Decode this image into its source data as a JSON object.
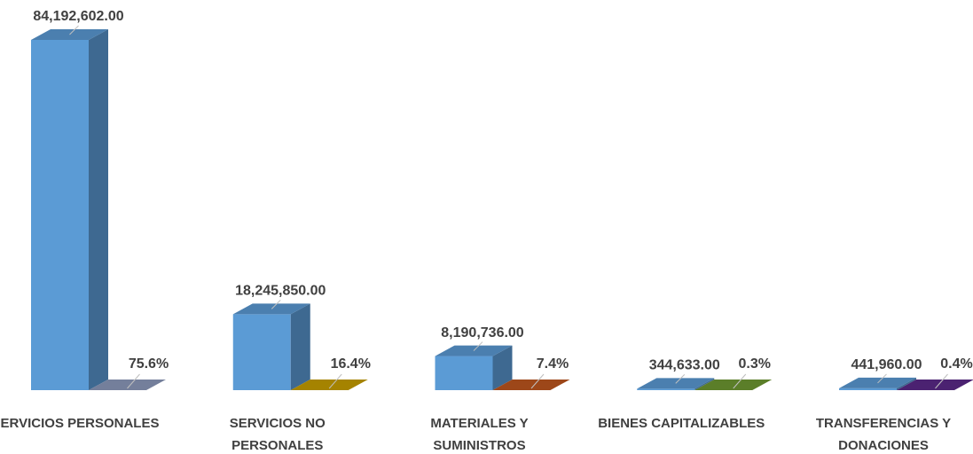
{
  "chart_data": {
    "type": "bar3d",
    "categories": [
      "SERVICIOS PERSONALES",
      "SERVICIOS NO PERSONALES",
      "MATERIALES Y SUMINISTROS",
      "BIENES CAPITALIZABLES",
      "TRANSFERENCIAS Y DONACIONES"
    ],
    "series": [
      {
        "color": "#5b9bd5",
        "values": [
          84192602.0,
          18245850.0,
          8190736.0,
          344633.0,
          441960.0
        ],
        "value_labels": [
          "84,192,602.00",
          "18,245,850.00",
          "8,190,736.00",
          "344,633.00",
          "441,960.00"
        ]
      },
      {
        "colors": [
          "#8e9bbd",
          "#c9a000",
          "#c0561f",
          "#6f9a32",
          "#5c2a8a"
        ],
        "values": [
          75.6,
          16.4,
          7.4,
          0.3,
          0.4
        ],
        "value_labels": [
          "75.6%",
          "16.4%",
          "7.4%",
          "0.3%",
          "0.4%"
        ]
      }
    ]
  }
}
